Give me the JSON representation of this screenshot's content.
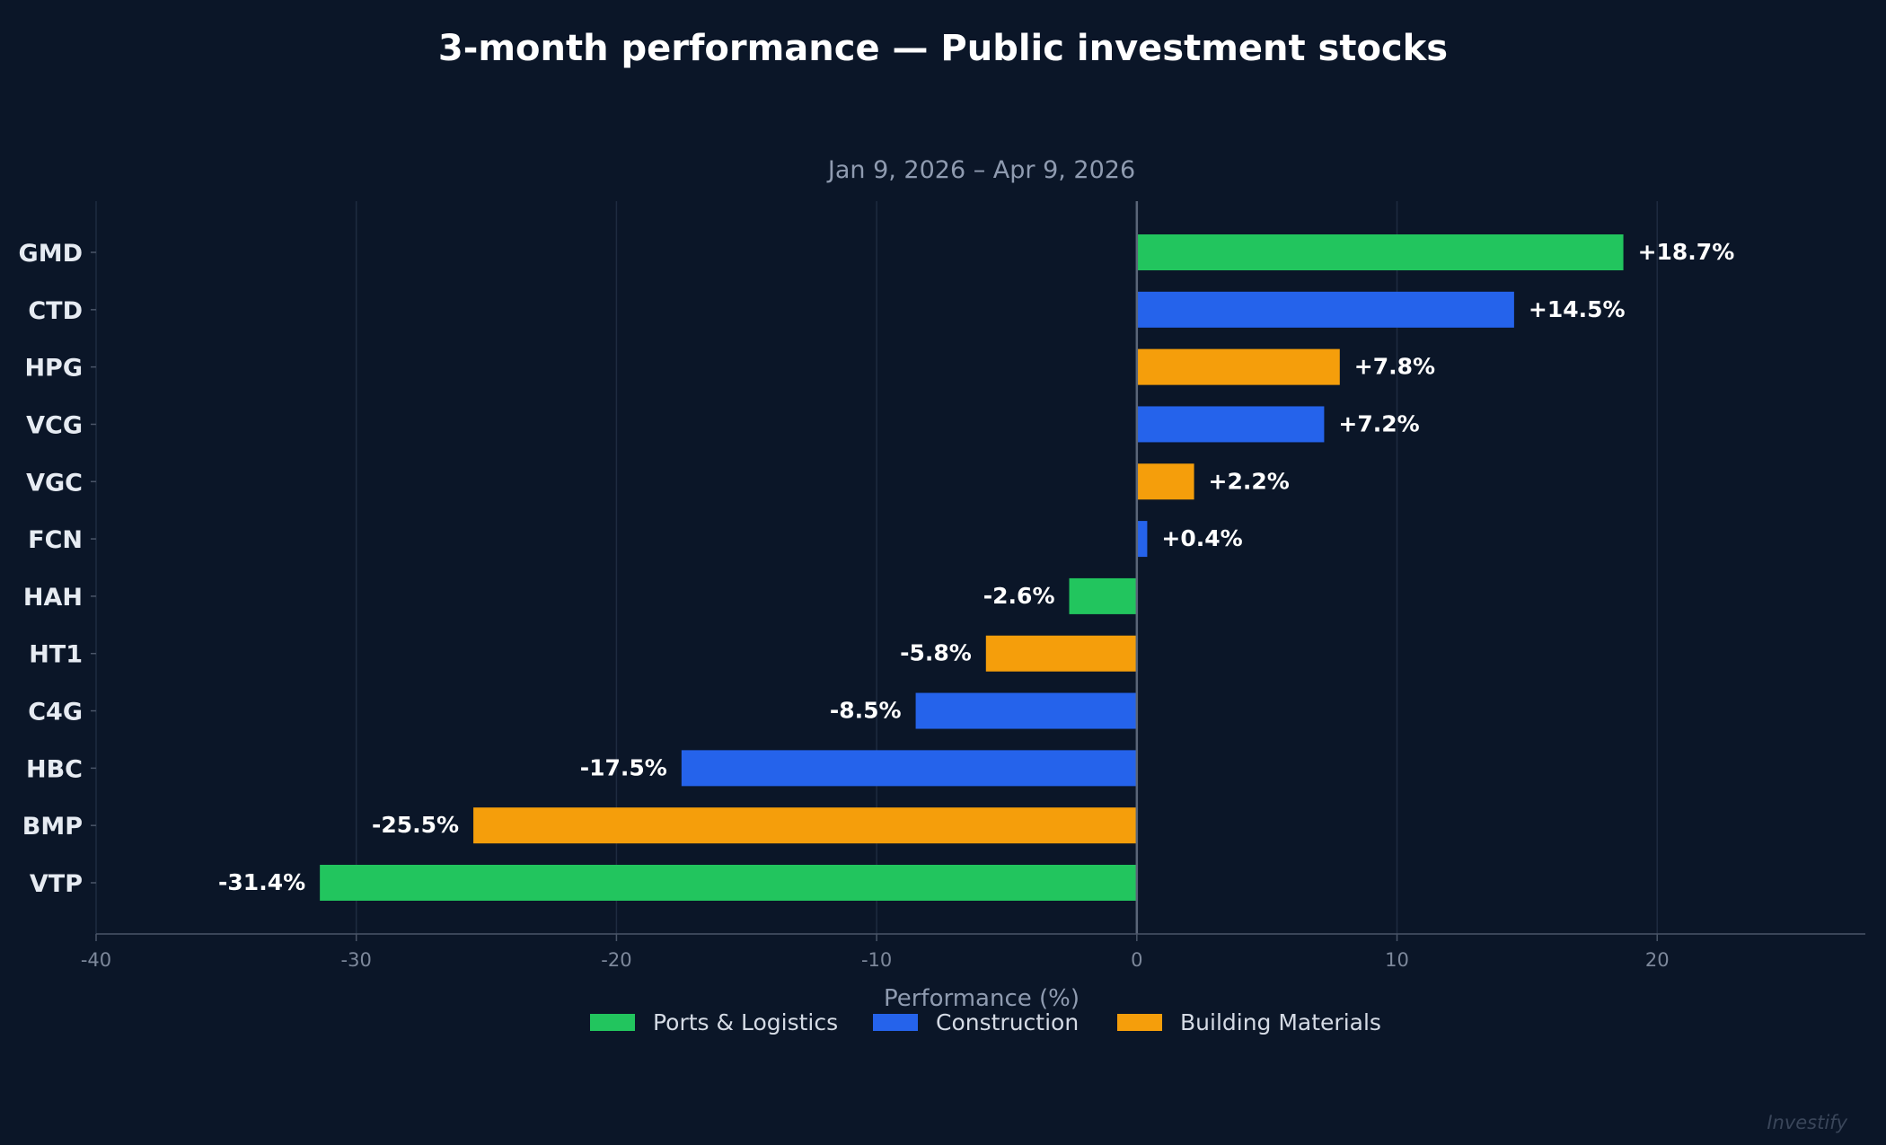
{
  "chart_data": {
    "type": "bar",
    "orientation": "horizontal",
    "title": "3-month performance — Public investment stocks",
    "subtitle": "Jan 9, 2026 – Apr 9, 2026",
    "xlabel": "Performance (%)",
    "ylabel": "",
    "xlim": [
      -40,
      28
    ],
    "xticks": [
      -40,
      -30,
      -20,
      -10,
      0,
      10,
      20
    ],
    "grid": "vertical",
    "legend_position": "bottom-center",
    "categories": [
      "GMD",
      "CTD",
      "HPG",
      "VCG",
      "VGC",
      "FCN",
      "HAH",
      "HT1",
      "C4G",
      "HBC",
      "BMP",
      "VTP"
    ],
    "values": [
      18.7,
      14.5,
      7.8,
      7.2,
      2.2,
      0.4,
      -2.6,
      -5.8,
      -8.5,
      -17.5,
      -25.5,
      -31.4
    ],
    "data_labels": [
      "+18.7%",
      "+14.5%",
      "+7.8%",
      "+7.2%",
      "+2.2%",
      "+0.4%",
      "-2.6%",
      "-5.8%",
      "-8.5%",
      "-17.5%",
      "-25.5%",
      "-31.4%"
    ],
    "groups": [
      "Ports & Logistics",
      "Construction",
      "Building Materials",
      "Construction",
      "Building Materials",
      "Construction",
      "Ports & Logistics",
      "Building Materials",
      "Construction",
      "Construction",
      "Building Materials",
      "Ports & Logistics"
    ],
    "legend": [
      {
        "name": "Ports & Logistics",
        "color": "#22c55e"
      },
      {
        "name": "Construction",
        "color": "#2563eb"
      },
      {
        "name": "Building Materials",
        "color": "#f59e0b"
      }
    ]
  },
  "watermark": "Investify",
  "colors": {
    "background": "#0b1628",
    "grid": "#1e2b40",
    "axis": "#4a5568"
  }
}
